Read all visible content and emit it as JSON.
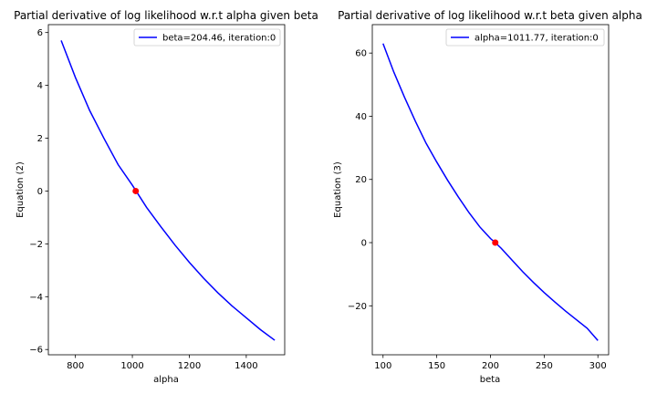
{
  "chart_data": [
    {
      "type": "line",
      "title": "Partial derivative of log likelihood w.r.t alpha given beta",
      "xlabel": "alpha",
      "ylabel": "Equation (2)",
      "xlim": [
        705,
        1535
      ],
      "ylim": [
        -6.2,
        6.3
      ],
      "xticks": [
        800,
        1000,
        1200,
        1400
      ],
      "yticks": [
        -6,
        -4,
        -2,
        0,
        2,
        4,
        6
      ],
      "xtick_labels": [
        "800",
        "1000",
        "1200",
        "1400"
      ],
      "ytick_labels": [
        "−6",
        "−4",
        "−2",
        "0",
        "2",
        "4",
        "6"
      ],
      "legend_position": "top-right",
      "series": [
        {
          "name": "beta=204.46, iteration:0",
          "color": "#0000ff",
          "x": [
            750,
            800,
            850,
            900,
            950,
            1000,
            1050,
            1100,
            1150,
            1200,
            1250,
            1300,
            1350,
            1400,
            1450,
            1500
          ],
          "y": [
            5.7,
            4.3,
            3.05,
            2.0,
            1.0,
            0.22,
            -0.62,
            -1.35,
            -2.05,
            -2.7,
            -3.3,
            -3.85,
            -4.35,
            -4.8,
            -5.25,
            -5.65
          ]
        }
      ],
      "marker": {
        "x": 1011.77,
        "y": 0.0,
        "color": "#ff0000"
      }
    },
    {
      "type": "line",
      "title": "Partial derivative of log likelihood w.r.t beta given alpha",
      "xlabel": "beta",
      "ylabel": "Equation (3)",
      "xlim": [
        90,
        310
      ],
      "ylim": [
        -35.5,
        69
      ],
      "xticks": [
        100,
        150,
        200,
        250,
        300
      ],
      "yticks": [
        -20,
        0,
        20,
        40,
        60
      ],
      "xtick_labels": [
        "100",
        "150",
        "200",
        "250",
        "300"
      ],
      "ytick_labels": [
        "−20",
        "0",
        "20",
        "40",
        "60"
      ],
      "legend_position": "top-right",
      "series": [
        {
          "name": "alpha=1011.77, iteration:0",
          "color": "#0000ff",
          "x": [
            100,
            110,
            120,
            130,
            140,
            150,
            160,
            170,
            180,
            190,
            200,
            204.46,
            210,
            220,
            230,
            240,
            250,
            260,
            270,
            280,
            290,
            300
          ],
          "y": [
            63,
            54,
            46,
            38.5,
            31.5,
            25.5,
            19.8,
            14.5,
            9.5,
            5,
            1.3,
            0,
            -1.8,
            -5.5,
            -9.2,
            -12.6,
            -15.8,
            -18.8,
            -21.7,
            -24.4,
            -27.1,
            -31
          ]
        }
      ],
      "marker": {
        "x": 204.46,
        "y": 0.0,
        "color": "#ff0000"
      }
    }
  ]
}
